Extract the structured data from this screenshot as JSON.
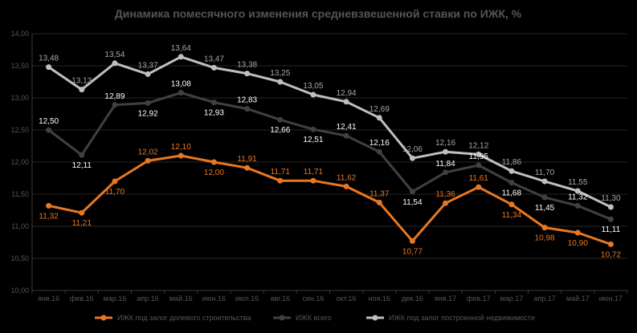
{
  "chart_data": {
    "type": "line",
    "title": "Динамика помесячного изменения средневзвешенной ставки по ИЖК, %",
    "categories": [
      "янв.16",
      "фев.16",
      "мар.16",
      "апр.16",
      "май.16",
      "июн.16",
      "июл.16",
      "авг.16",
      "сен.16",
      "окт.16",
      "ноя.16",
      "дек.16",
      "янв.17",
      "фев.17",
      "мар.17",
      "апр.17",
      "май.17",
      "июн.17"
    ],
    "ylim": [
      10.0,
      14.0
    ],
    "yticks": [
      "10,00",
      "10,50",
      "11,00",
      "11,50",
      "12,00",
      "12,50",
      "13,00",
      "13,50",
      "14,00"
    ],
    "grid": true,
    "legend_position": "bottom",
    "series": [
      {
        "name": "ИЖК под залог долевого строительства",
        "color": "#E87722",
        "labelColor": "#E87722",
        "values": [
          11.32,
          11.21,
          11.7,
          12.02,
          12.1,
          12.0,
          11.91,
          11.71,
          11.71,
          11.62,
          11.37,
          10.77,
          11.36,
          11.61,
          11.34,
          10.98,
          10.9,
          10.72
        ],
        "labels": [
          "11,32",
          "11,21",
          "11,70",
          "12,02",
          "12,10",
          "12,00",
          "11,91",
          "11,71",
          "11,71",
          "11,62",
          "11,37",
          "10,77",
          "11,36",
          "11,61",
          "11,34",
          "10,98",
          "10,90",
          "10,72"
        ]
      },
      {
        "name": "ИЖК всего",
        "color": "#404040",
        "labelColor": "#FFFFFF",
        "values": [
          12.5,
          12.11,
          12.89,
          12.92,
          13.08,
          12.93,
          12.83,
          12.66,
          12.51,
          12.41,
          12.16,
          11.54,
          11.84,
          11.95,
          11.68,
          11.45,
          11.32,
          11.11
        ],
        "labels": [
          "12,50",
          "12,11",
          "12,89",
          "12,92",
          "13,08",
          "12,93",
          "12,83",
          "12,66",
          "12,51",
          "12,41",
          "12,16",
          "11,54",
          "11,84",
          "11,95",
          "11,68",
          "11,45",
          "11,32",
          "11,11"
        ]
      },
      {
        "name": "ИЖК под залог построенной недвижимости",
        "color": "#BFBFBF",
        "labelColor": "#A6A6A6",
        "values": [
          13.48,
          13.13,
          13.54,
          13.37,
          13.64,
          13.47,
          13.38,
          13.25,
          13.05,
          12.94,
          12.69,
          12.06,
          12.16,
          12.12,
          11.86,
          11.7,
          11.55,
          11.3
        ],
        "labels": [
          "13,48",
          "13,13",
          "13,54",
          "13,37",
          "13,64",
          "13,47",
          "13,38",
          "13,25",
          "13,05",
          "12,94",
          "12,69",
          "12,06",
          "12,16",
          "12,12",
          "11,86",
          "11,70",
          "11,55",
          "11,30"
        ]
      }
    ]
  }
}
